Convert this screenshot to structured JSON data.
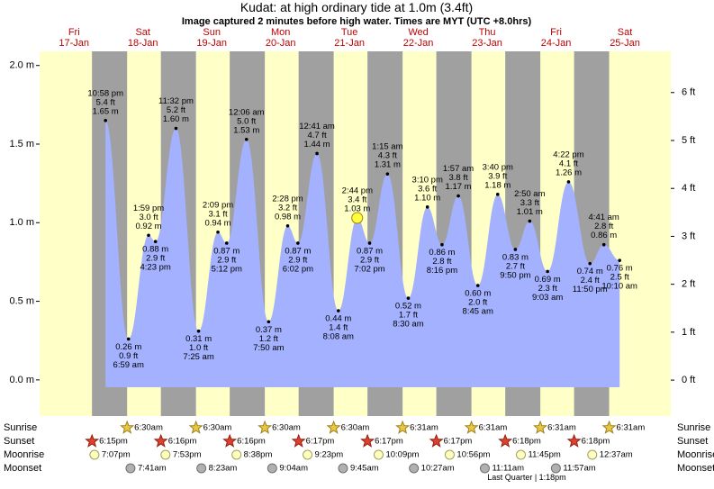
{
  "chart_data": {
    "type": "tide",
    "title": "Kudat: at high  ordinary tide at 1.0m (3.4ft)",
    "subtitle": "Image captured 2 minutes before high water. Times are MYT (UTC +8.0hrs)",
    "days": [
      {
        "weekday": "Fri",
        "date": "17-Jan"
      },
      {
        "weekday": "Sat",
        "date": "18-Jan"
      },
      {
        "weekday": "Sun",
        "date": "19-Jan"
      },
      {
        "weekday": "Mon",
        "date": "20-Jan"
      },
      {
        "weekday": "Tue",
        "date": "21-Jan"
      },
      {
        "weekday": "Wed",
        "date": "22-Jan"
      },
      {
        "weekday": "Thu",
        "date": "23-Jan"
      },
      {
        "weekday": "Fri",
        "date": "24-Jan"
      },
      {
        "weekday": "Sat",
        "date": "25-Jan"
      }
    ],
    "xlim": [
      0,
      220
    ],
    "ylim": [
      -0.23,
      2.09
    ],
    "yticks": [
      {
        "value": 0,
        "label": "0.0 m"
      },
      {
        "value": 0.5,
        "label": "0.5 m"
      },
      {
        "value": 1,
        "label": "1.0 m"
      },
      {
        "value": 1.5,
        "label": "1.5 m"
      },
      {
        "value": 2,
        "label": "2.0 m"
      }
    ],
    "y2lim": [
      -0.75,
      6.86
    ],
    "y2ticks": [
      {
        "value": 0,
        "label": "0 ft"
      },
      {
        "value": 1,
        "label": "1 ft"
      },
      {
        "value": 2,
        "label": "2 ft"
      },
      {
        "value": 3,
        "label": "3 ft"
      },
      {
        "value": 4,
        "label": "4 ft"
      },
      {
        "value": 5,
        "label": "5 ft"
      },
      {
        "value": 6,
        "label": "6 ft"
      }
    ],
    "color": "#a3b1ff",
    "tides": [
      {
        "time": "10:58 pm",
        "x": 22.97,
        "height": 1.65,
        "height_label": "1.65 m",
        "ft_label": "5.4 ft"
      },
      {
        "time": "6:59 am",
        "x": 30.98,
        "height": 0.26,
        "height_label": "0.26 m",
        "ft_label": "0.9 ft"
      },
      {
        "time": "1:59 pm",
        "x": 37.98,
        "height": 0.92,
        "height_label": "0.92 m",
        "ft_label": "3.0 ft"
      },
      {
        "time": "4:23 pm",
        "x": 40.38,
        "height": 0.88,
        "height_label": "0.88 m",
        "ft_label": "2.9 ft"
      },
      {
        "time": "11:32 pm",
        "x": 47.53,
        "height": 1.6,
        "height_label": "1.60 m",
        "ft_label": "5.2 ft"
      },
      {
        "time": "7:25 am",
        "x": 55.42,
        "height": 0.31,
        "height_label": "0.31 m",
        "ft_label": "1.0 ft"
      },
      {
        "time": "2:09 pm",
        "x": 62.15,
        "height": 0.94,
        "height_label": "0.94 m",
        "ft_label": "3.1 ft"
      },
      {
        "time": "5:12 pm",
        "x": 65.2,
        "height": 0.87,
        "height_label": "0.87 m",
        "ft_label": "2.9 ft"
      },
      {
        "time": "12:06 am",
        "x": 72.1,
        "height": 1.53,
        "height_label": "1.53 m",
        "ft_label": "5.0 ft"
      },
      {
        "time": "7:50 am",
        "x": 79.83,
        "height": 0.37,
        "height_label": "0.37 m",
        "ft_label": "1.2 ft"
      },
      {
        "time": "2:28 pm",
        "x": 86.47,
        "height": 0.98,
        "height_label": "0.98 m",
        "ft_label": "3.2 ft"
      },
      {
        "time": "6:02 pm",
        "x": 90.03,
        "height": 0.87,
        "height_label": "0.87 m",
        "ft_label": "2.9 ft"
      },
      {
        "time": "12:41 am",
        "x": 96.68,
        "height": 1.44,
        "height_label": "1.44 m",
        "ft_label": "4.7 ft"
      },
      {
        "time": "8:08 am",
        "x": 104.13,
        "height": 0.44,
        "height_label": "0.44 m",
        "ft_label": "1.4 ft"
      },
      {
        "time": "2:44 pm",
        "x": 110.73,
        "height": 1.03,
        "height_label": "1.03 m",
        "ft_label": "3.4 ft"
      },
      {
        "time": "7:02 pm",
        "x": 115.03,
        "height": 0.87,
        "height_label": "0.87 m",
        "ft_label": "2.9 ft"
      },
      {
        "time": "1:15 am",
        "x": 121.25,
        "height": 1.31,
        "height_label": "1.31 m",
        "ft_label": "4.3 ft"
      },
      {
        "time": "8:30 am",
        "x": 128.5,
        "height": 0.52,
        "height_label": "0.52 m",
        "ft_label": "1.7 ft"
      },
      {
        "time": "3:10 pm",
        "x": 135.17,
        "height": 1.1,
        "height_label": "1.10 m",
        "ft_label": "3.6 ft"
      },
      {
        "time": "8:16 pm",
        "x": 140.27,
        "height": 0.86,
        "height_label": "0.86 m",
        "ft_label": "2.8 ft"
      },
      {
        "time": "1:57 am",
        "x": 145.95,
        "height": 1.17,
        "height_label": "1.17 m",
        "ft_label": "3.8 ft"
      },
      {
        "time": "8:45 am",
        "x": 152.75,
        "height": 0.6,
        "height_label": "0.60 m",
        "ft_label": "2.0 ft"
      },
      {
        "time": "3:40 pm",
        "x": 159.67,
        "height": 1.18,
        "height_label": "1.18 m",
        "ft_label": "3.9 ft"
      },
      {
        "time": "9:50 pm",
        "x": 165.83,
        "height": 0.83,
        "height_label": "0.83 m",
        "ft_label": "2.7 ft"
      },
      {
        "time": "2:50 am",
        "x": 170.83,
        "height": 1.01,
        "height_label": "1.01 m",
        "ft_label": "3.3 ft"
      },
      {
        "time": "9:03 am",
        "x": 177.05,
        "height": 0.69,
        "height_label": "0.69 m",
        "ft_label": "2.3 ft"
      },
      {
        "time": "4:22 pm",
        "x": 184.37,
        "height": 1.26,
        "height_label": "1.26 m",
        "ft_label": "4.1 ft"
      },
      {
        "time": "11:50 pm",
        "x": 191.83,
        "height": 0.74,
        "height_label": "0.74 m",
        "ft_label": "2.4 ft"
      },
      {
        "time": "4:41 am",
        "x": 196.68,
        "height": 0.86,
        "height_label": "0.86 m",
        "ft_label": "2.8 ft"
      },
      {
        "time": "10:10 am",
        "x": 202.17,
        "height": 0.76,
        "height_label": "0.76 m",
        "ft_label": "2.5 ft"
      }
    ],
    "now": {
      "x": 110.7,
      "height": 1.03
    },
    "sunrise": {
      "name": "Sunrise",
      "events": [
        {
          "x": 30.5,
          "label": "6:30am"
        },
        {
          "x": 54.5,
          "label": "6:30am"
        },
        {
          "x": 78.5,
          "label": "6:30am"
        },
        {
          "x": 102.5,
          "label": "6:30am"
        },
        {
          "x": 126.52,
          "label": "6:31am"
        },
        {
          "x": 150.52,
          "label": "6:31am"
        },
        {
          "x": 174.52,
          "label": "6:31am"
        },
        {
          "x": 198.52,
          "label": "6:31am"
        }
      ]
    },
    "sunset": {
      "name": "Sunset",
      "events": [
        {
          "x": 18.25,
          "label": "6:15pm"
        },
        {
          "x": 42.27,
          "label": "6:16pm"
        },
        {
          "x": 66.27,
          "label": "6:16pm"
        },
        {
          "x": 90.28,
          "label": "6:17pm"
        },
        {
          "x": 114.28,
          "label": "6:17pm"
        },
        {
          "x": 138.28,
          "label": "6:17pm"
        },
        {
          "x": 162.3,
          "label": "6:18pm"
        },
        {
          "x": 186.3,
          "label": "6:18pm"
        }
      ]
    },
    "moonrise": {
      "name": "Moonrise",
      "events": [
        {
          "x": 19.12,
          "label": "7:07pm"
        },
        {
          "x": 43.88,
          "label": "7:53pm"
        },
        {
          "x": 68.63,
          "label": "8:38pm"
        },
        {
          "x": 93.38,
          "label": "9:23pm"
        },
        {
          "x": 118.15,
          "label": "10:09pm"
        },
        {
          "x": 142.93,
          "label": "10:56pm"
        },
        {
          "x": 167.75,
          "label": "11:45pm"
        },
        {
          "x": 192.62,
          "label": "12:37am"
        }
      ]
    },
    "moonset": {
      "name": "Moonset",
      "events": [
        {
          "x": 31.68,
          "label": "7:41am"
        },
        {
          "x": 56.38,
          "label": "8:23am"
        },
        {
          "x": 81.07,
          "label": "9:04am"
        },
        {
          "x": 105.75,
          "label": "9:45am"
        },
        {
          "x": 130.45,
          "label": "10:27am"
        },
        {
          "x": 155.18,
          "label": "11:11am"
        },
        {
          "x": 179.95,
          "label": "11:57am"
        }
      ]
    },
    "moon_phase": "Last Quarter | 1:18pm"
  }
}
